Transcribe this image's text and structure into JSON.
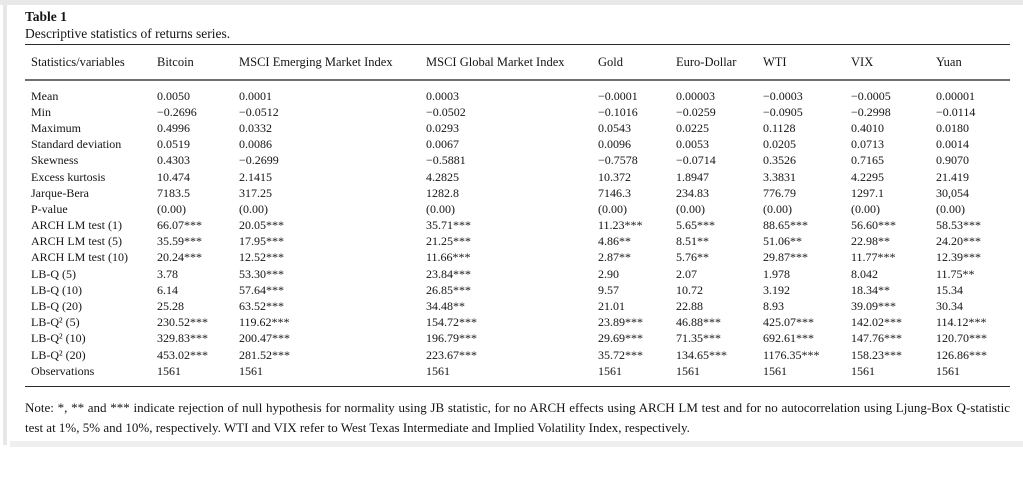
{
  "title": "Table 1",
  "subtitle": "Descriptive statistics of returns series.",
  "note": "Note: *, ** and *** indicate rejection of null hypothesis for normality using JB statistic, for no ARCH effects using ARCH LM test and for no autocorrelation using Ljung-Box Q-statistic test at 1%, 5% and 10%, respectively. WTI and VIX refer to West Texas Intermediate and Implied Volatility Index, respectively.",
  "table": {
    "columns": [
      "Statistics/variables",
      "Bitcoin",
      "MSCI Emerging Market Index",
      "MSCI Global Market Index",
      "Gold",
      "Euro-Dollar",
      "WTI",
      "VIX",
      "Yuan"
    ],
    "rows": [
      {
        "label": "Mean",
        "values": [
          "0.0050",
          "0.0001",
          "0.0003",
          "−0.0001",
          "0.00003",
          "−0.0003",
          "−0.0005",
          "0.00001"
        ]
      },
      {
        "label": "Min",
        "values": [
          "−0.2696",
          "−0.0512",
          "−0.0502",
          "−0.1016",
          "−0.0259",
          "−0.0905",
          "−0.2998",
          "−0.0114"
        ]
      },
      {
        "label": "Maximum",
        "values": [
          "0.4996",
          "0.0332",
          "0.0293",
          "0.0543",
          "0.0225",
          "0.1128",
          "0.4010",
          "0.0180"
        ]
      },
      {
        "label": "Standard deviation",
        "values": [
          "0.0519",
          "0.0086",
          "0.0067",
          "0.0096",
          "0.0053",
          "0.0205",
          "0.0713",
          "0.0014"
        ]
      },
      {
        "label": "Skewness",
        "values": [
          "0.4303",
          "−0.2699",
          "−0.5881",
          "−0.7578",
          "−0.0714",
          "0.3526",
          "0.7165",
          "0.9070"
        ]
      },
      {
        "label": "Excess kurtosis",
        "values": [
          "10.474",
          "2.1415",
          "4.2825",
          "10.372",
          "1.8947",
          "3.3831",
          "4.2295",
          "21.419"
        ]
      },
      {
        "label": "Jarque-Bera",
        "values": [
          "7183.5",
          "317.25",
          "1282.8",
          "7146.3",
          "234.83",
          "776.79",
          "1297.1",
          "30,054"
        ]
      },
      {
        "label": "P-value",
        "values": [
          "(0.00)",
          "(0.00)",
          "(0.00)",
          "(0.00)",
          "(0.00)",
          "(0.00)",
          "(0.00)",
          "(0.00)"
        ]
      },
      {
        "label": "ARCH LM test (1)",
        "values": [
          "66.07***",
          "20.05***",
          "35.71***",
          "11.23***",
          "5.65***",
          "88.65***",
          "56.60***",
          "58.53***"
        ]
      },
      {
        "label": "ARCH LM test (5)",
        "values": [
          "35.59***",
          "17.95***",
          "21.25***",
          "4.86**",
          "8.51**",
          "51.06**",
          "22.98**",
          "24.20***"
        ]
      },
      {
        "label": "ARCH LM test (10)",
        "values": [
          "20.24***",
          "12.52***",
          "11.66***",
          "2.87**",
          "5.76**",
          "29.87***",
          "11.77***",
          "12.39***"
        ]
      },
      {
        "label": "LB-Q (5)",
        "values": [
          "3.78",
          "53.30***",
          "23.84***",
          "2.90",
          "2.07",
          "1.978",
          "8.042",
          "11.75**"
        ]
      },
      {
        "label": "LB-Q (10)",
        "values": [
          "6.14",
          "57.64***",
          "26.85***",
          "9.57",
          "10.72",
          "3.192",
          "18.34**",
          "15.34"
        ]
      },
      {
        "label": "LB-Q (20)",
        "values": [
          "25.28",
          "63.52***",
          "34.48**",
          "21.01",
          "22.88",
          "8.93",
          "39.09***",
          "30.34"
        ]
      },
      {
        "label": "LB-Q² (5)",
        "values": [
          "230.52***",
          "119.62***",
          "154.72***",
          "23.89***",
          "46.88***",
          "425.07***",
          "142.02***",
          "114.12***"
        ]
      },
      {
        "label": "LB-Q² (10)",
        "values": [
          "329.83***",
          "200.47***",
          "196.79***",
          "29.69***",
          "71.35***",
          "692.61***",
          "147.76***",
          "120.70***"
        ]
      },
      {
        "label": "LB-Q² (20)",
        "values": [
          "453.02***",
          "281.52***",
          "223.67***",
          "35.72***",
          "134.65***",
          "1176.35***",
          "158.23***",
          "126.86***"
        ]
      },
      {
        "label": "Observations",
        "values": [
          "1561",
          "1561",
          "1561",
          "1561",
          "1561",
          "1561",
          "1561",
          "1561"
        ]
      }
    ]
  }
}
